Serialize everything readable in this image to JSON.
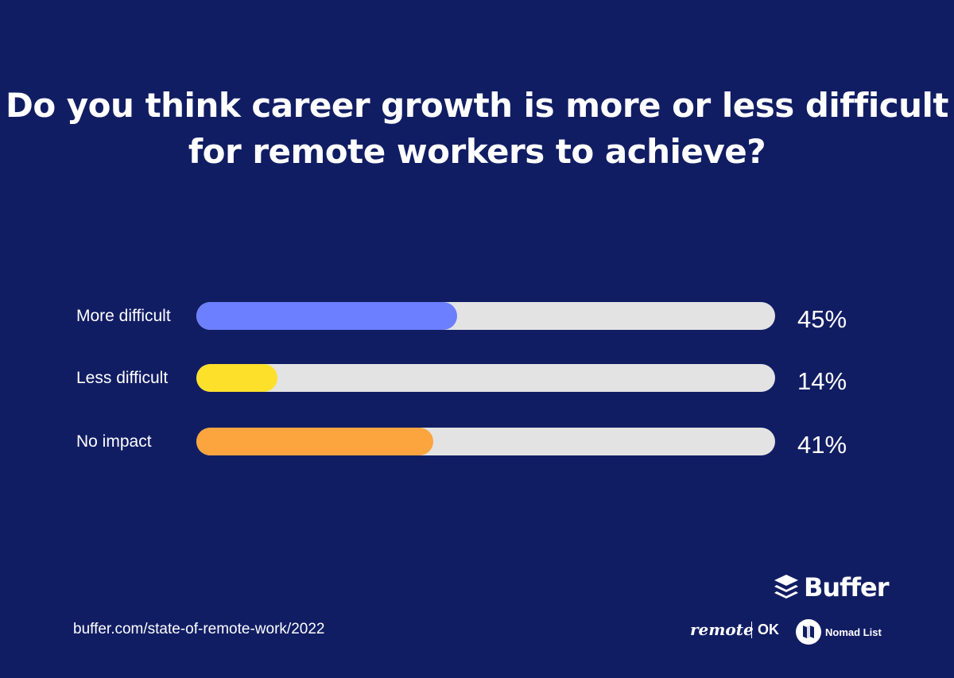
{
  "chart_data": {
    "type": "bar",
    "orientation": "horizontal",
    "title": "Do you think career growth is more or less difficult for remote workers to achieve?",
    "categories": [
      "More difficult",
      "Less difficult",
      "No impact"
    ],
    "values": [
      45,
      14,
      41
    ],
    "value_labels": [
      "45%",
      "14%",
      "41%"
    ],
    "xlim": [
      0,
      100
    ],
    "colors": [
      "#6b7fff",
      "#fde02a",
      "#fca43e"
    ],
    "track_color": "#e3e3e3",
    "grid": false
  },
  "background_color": "#111d63",
  "footer": {
    "url": "buffer.com/state-of-remote-work/2022",
    "logos": {
      "buffer": "Buffer",
      "remote": "remote",
      "ok": "OK",
      "nomad": "Nomad List"
    }
  }
}
